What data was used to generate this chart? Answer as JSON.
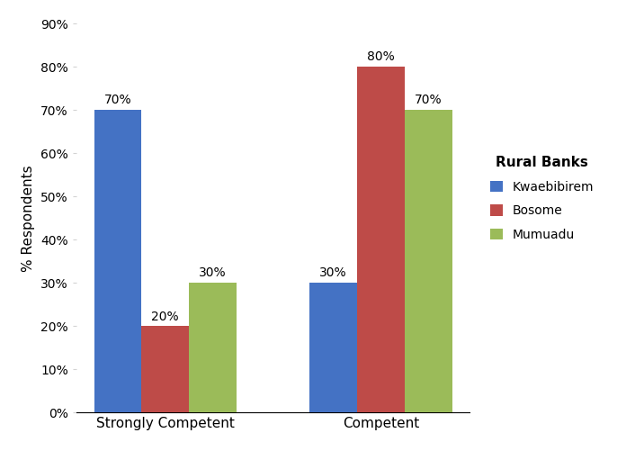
{
  "categories": [
    "Strongly Competent",
    "Competent"
  ],
  "series": [
    {
      "name": "Kwaebibirem",
      "values": [
        70,
        30
      ],
      "color": "#4472C4"
    },
    {
      "name": "Bosome",
      "values": [
        20,
        80
      ],
      "color": "#BE4B48"
    },
    {
      "name": "Mumuadu",
      "values": [
        30,
        70
      ],
      "color": "#9BBB59"
    }
  ],
  "ylabel": "% Respondents",
  "ylim": [
    0,
    90
  ],
  "yticks": [
    0,
    10,
    20,
    30,
    40,
    50,
    60,
    70,
    80,
    90
  ],
  "legend_title": "Rural Banks",
  "legend_title_fontsize": 11,
  "legend_fontsize": 10,
  "bar_width": 0.22,
  "label_fontsize": 10,
  "axis_fontsize": 11,
  "tick_fontsize": 10,
  "background_color": "#FFFFFF"
}
